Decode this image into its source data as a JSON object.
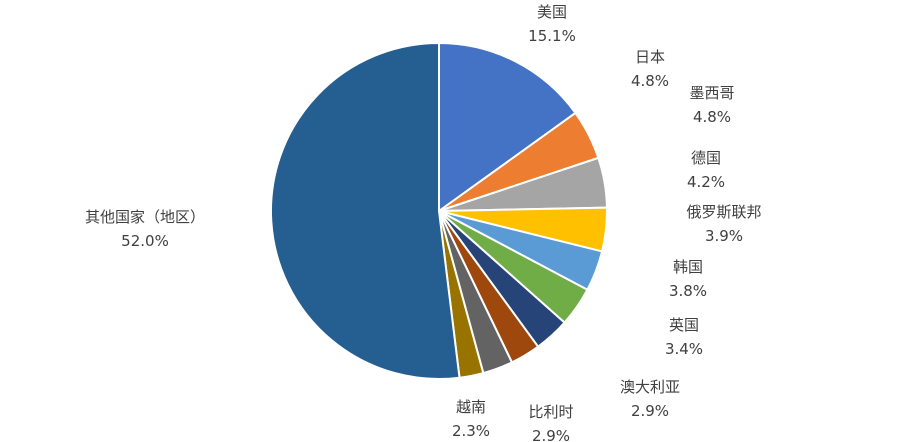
{
  "chart_data": {
    "type": "pie",
    "title": "",
    "slices": [
      {
        "label": "美国",
        "value": 15.1,
        "display": "15.1%",
        "color": "#4472C4"
      },
      {
        "label": "日本",
        "value": 4.8,
        "display": "4.8%",
        "color": "#ED7D31"
      },
      {
        "label": "墨西哥",
        "value": 4.8,
        "display": "4.8%",
        "color": "#A5A5A5"
      },
      {
        "label": "德国",
        "value": 4.2,
        "display": "4.2%",
        "color": "#FFC000"
      },
      {
        "label": "俄罗斯联邦",
        "value": 3.9,
        "display": "3.9%",
        "color": "#5B9BD5"
      },
      {
        "label": "韩国",
        "value": 3.8,
        "display": "3.8%",
        "color": "#70AD47"
      },
      {
        "label": "英国",
        "value": 3.4,
        "display": "3.4%",
        "color": "#264478"
      },
      {
        "label": "澳大利亚",
        "value": 2.9,
        "display": "2.9%",
        "color": "#9E480E"
      },
      {
        "label": "比利时",
        "value": 2.9,
        "display": "2.9%",
        "color": "#636363"
      },
      {
        "label": "越南",
        "value": 2.3,
        "display": "2.3%",
        "color": "#997300"
      },
      {
        "label": "其他国家（地区）",
        "value": 52.0,
        "display": "52.0%",
        "color": "#255E91"
      }
    ],
    "start_angle": "12 o'clock",
    "direction": "clockwise",
    "slice_border_color": "#ffffff",
    "label_text_color": "#404040"
  }
}
